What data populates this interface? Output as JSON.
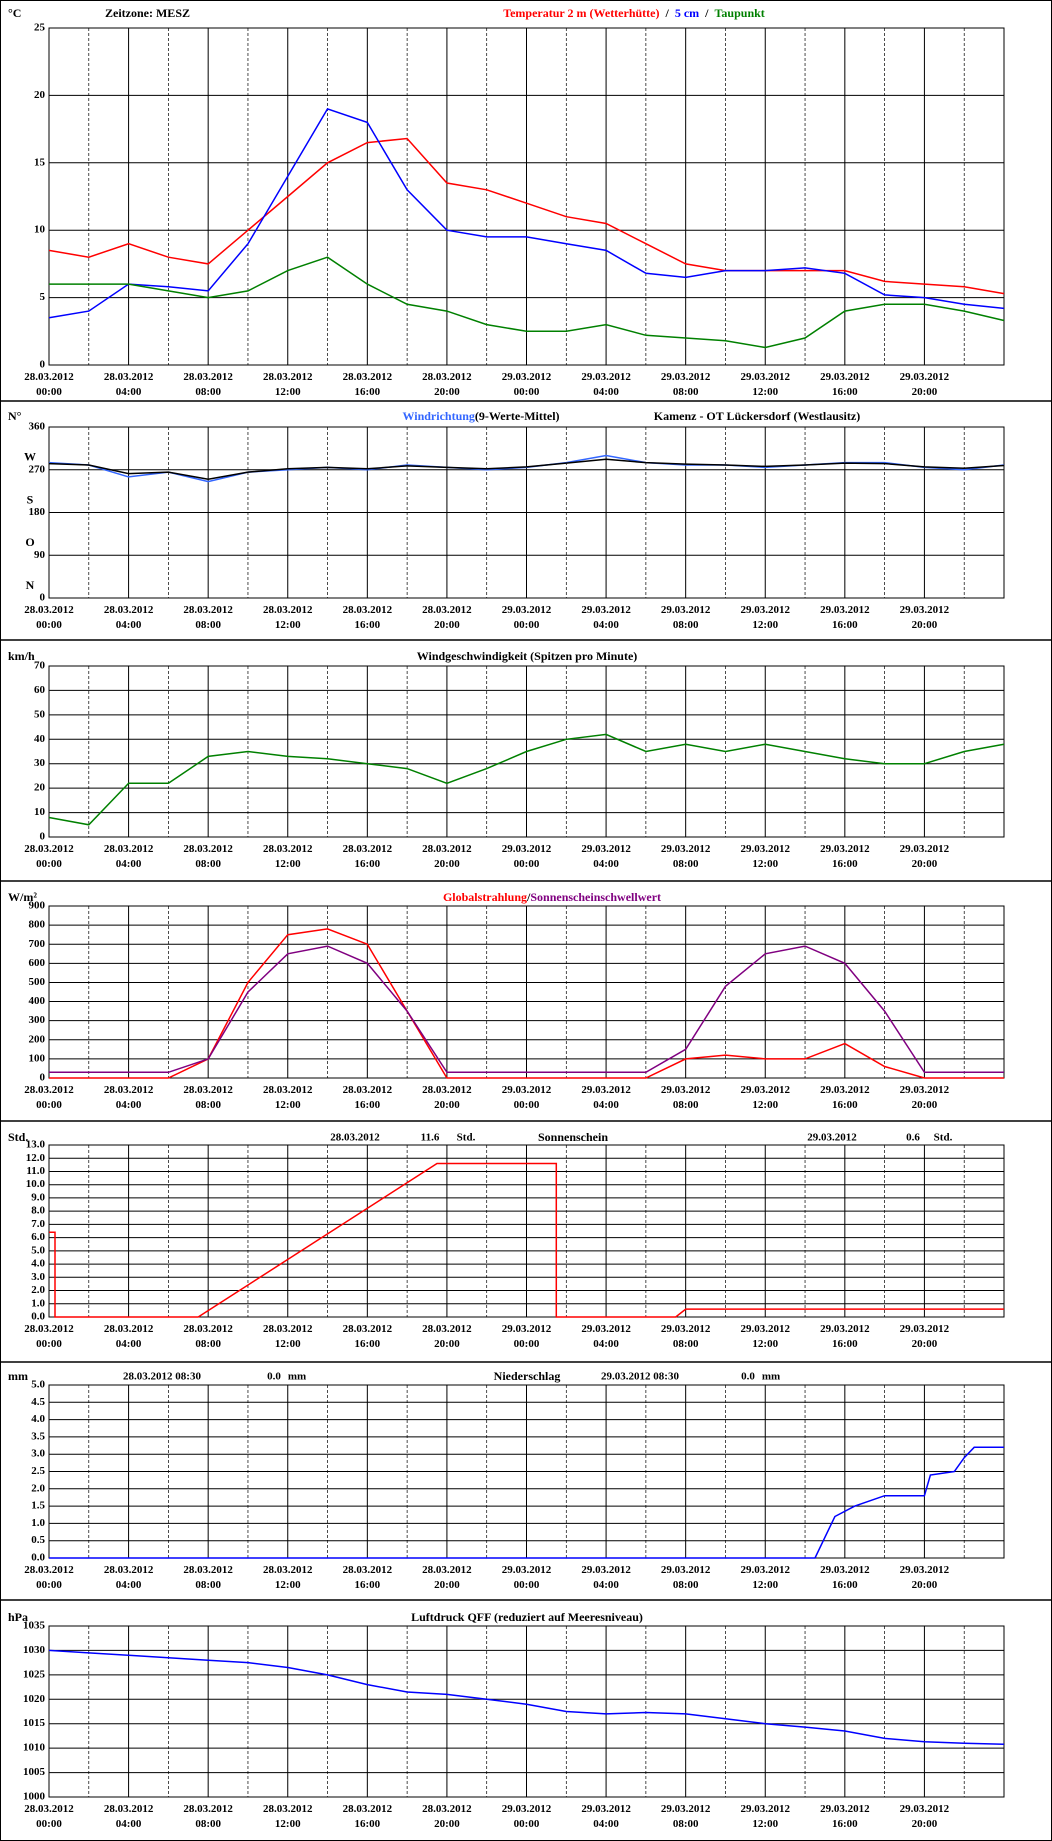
{
  "chart_data": [
    {
      "type": "line",
      "ylabel": "°C",
      "timezone": "Zeitzone: MESZ",
      "separator": "/",
      "xlim": [
        0,
        48
      ],
      "ylim": [
        0,
        25
      ],
      "yticks": [
        0,
        5,
        10,
        15,
        20,
        25
      ],
      "xticks": [
        {
          "value": 0,
          "label": "28.03.2012 00:00"
        },
        {
          "value": 4,
          "label": "28.03.2012 04:00"
        },
        {
          "value": 8,
          "label": "28.03.2012 08:00"
        },
        {
          "value": 12,
          "label": "28.03.2012 12:00"
        },
        {
          "value": 16,
          "label": "28.03.2012 16:00"
        },
        {
          "value": 20,
          "label": "28.03.2012 20:00"
        },
        {
          "value": 24,
          "label": "29.03.2012 00:00"
        },
        {
          "value": 28,
          "label": "29.03.2012 04:00"
        },
        {
          "value": 32,
          "label": "29.03.2012 08:00"
        },
        {
          "value": 36,
          "label": "29.03.2012 12:00"
        },
        {
          "value": 40,
          "label": "29.03.2012 16:00"
        },
        {
          "value": 44,
          "label": "29.03.2012 20:00"
        }
      ],
      "x": [
        0,
        2,
        4,
        6,
        8,
        10,
        12,
        14,
        16,
        18,
        20,
        22,
        24,
        26,
        28,
        30,
        32,
        34,
        36,
        38,
        40,
        42,
        44,
        46,
        48
      ],
      "series": [
        {
          "name": "Temperatur 2 m (Wetterhütte)",
          "color": "#ff0000",
          "values": [
            8.5,
            8,
            9,
            8,
            7.5,
            10,
            12.5,
            15,
            16.5,
            16.8,
            13.5,
            13,
            12,
            11,
            10.5,
            9,
            7.5,
            7,
            7,
            7,
            7,
            6.2,
            6,
            5.8,
            5.3
          ]
        },
        {
          "name": "5 cm",
          "color": "#0000ff",
          "values": [
            3.5,
            4,
            6,
            5.8,
            5.5,
            9,
            14,
            19,
            18,
            13,
            10,
            9.5,
            9.5,
            9,
            8.5,
            6.8,
            6.5,
            7,
            7,
            7.2,
            6.8,
            5.2,
            5,
            4.5,
            4.2
          ]
        },
        {
          "name": "Taupunkt",
          "color": "#008000",
          "values": [
            6,
            6,
            6,
            5.5,
            5,
            5.5,
            7,
            8,
            6,
            4.5,
            4,
            3,
            2.5,
            2.5,
            3,
            2.2,
            2,
            1.8,
            1.3,
            2,
            4,
            4.5,
            4.5,
            4,
            3.3
          ]
        }
      ]
    },
    {
      "type": "line",
      "ylabel": "N°",
      "location": "Kamenz - OT Lückersdorf (Westlausitz)",
      "xlim": [
        0,
        48
      ],
      "ylim": [
        0,
        360
      ],
      "yticks": [
        0,
        90,
        180,
        270,
        360
      ],
      "direction_labels": [
        {
          "value": 0,
          "label": "N"
        },
        {
          "value": 90,
          "label": "O"
        },
        {
          "value": 180,
          "label": "S"
        },
        {
          "value": 270,
          "label": "W"
        }
      ],
      "xticks": [
        {
          "value": 0,
          "label": "28.03.2012 00:00"
        },
        {
          "value": 4,
          "label": "28.03.2012 04:00"
        },
        {
          "value": 8,
          "label": "28.03.2012 08:00"
        },
        {
          "value": 12,
          "label": "28.03.2012 12:00"
        },
        {
          "value": 16,
          "label": "28.03.2012 16:00"
        },
        {
          "value": 20,
          "label": "28.03.2012 20:00"
        },
        {
          "value": 24,
          "label": "29.03.2012 00:00"
        },
        {
          "value": 28,
          "label": "29.03.2012 04:00"
        },
        {
          "value": 32,
          "label": "29.03.2012 08:00"
        },
        {
          "value": 36,
          "label": "29.03.2012 12:00"
        },
        {
          "value": 40,
          "label": "29.03.2012 16:00"
        },
        {
          "value": 44,
          "label": "29.03.2012 20:00"
        }
      ],
      "x": [
        0,
        2,
        4,
        6,
        8,
        10,
        12,
        14,
        16,
        18,
        20,
        22,
        24,
        26,
        28,
        30,
        32,
        34,
        36,
        38,
        40,
        42,
        44,
        46,
        48
      ],
      "series": [
        {
          "name": "Windrichtung",
          "color": "#3366ff",
          "values": [
            285,
            280,
            255,
            265,
            245,
            265,
            270,
            275,
            270,
            280,
            275,
            270,
            275,
            285,
            300,
            285,
            280,
            280,
            275,
            280,
            285,
            285,
            275,
            270,
            280
          ]
        },
        {
          "name": "(9-Werte-Mittel)",
          "color": "#000000",
          "values": [
            283,
            280,
            262,
            265,
            250,
            265,
            272,
            275,
            272,
            278,
            275,
            272,
            276,
            284,
            292,
            285,
            282,
            280,
            277,
            280,
            284,
            283,
            276,
            273,
            279
          ]
        }
      ]
    },
    {
      "type": "line",
      "ylabel": "km/h",
      "title": "Windgeschwindigkeit (Spitzen pro Minute)",
      "xlim": [
        0,
        48
      ],
      "ylim": [
        0,
        70
      ],
      "yticks": [
        0,
        10,
        20,
        30,
        40,
        50,
        60,
        70
      ],
      "xticks": [
        {
          "value": 0,
          "label": "28.03.2012 00:00"
        },
        {
          "value": 4,
          "label": "28.03.2012 04:00"
        },
        {
          "value": 8,
          "label": "28.03.2012 08:00"
        },
        {
          "value": 12,
          "label": "28.03.2012 12:00"
        },
        {
          "value": 16,
          "label": "28.03.2012 16:00"
        },
        {
          "value": 20,
          "label": "28.03.2012 20:00"
        },
        {
          "value": 24,
          "label": "29.03.2012 00:00"
        },
        {
          "value": 28,
          "label": "29.03.2012 04:00"
        },
        {
          "value": 32,
          "label": "29.03.2012 08:00"
        },
        {
          "value": 36,
          "label": "29.03.2012 12:00"
        },
        {
          "value": 40,
          "label": "29.03.2012 16:00"
        },
        {
          "value": 44,
          "label": "29.03.2012 20:00"
        }
      ],
      "x": [
        0,
        2,
        4,
        6,
        8,
        10,
        12,
        14,
        16,
        18,
        20,
        22,
        24,
        26,
        28,
        30,
        32,
        34,
        36,
        38,
        40,
        42,
        44,
        46,
        48
      ],
      "series": [
        {
          "color": "#008000",
          "values": [
            8,
            5,
            22,
            22,
            33,
            35,
            33,
            32,
            30,
            28,
            22,
            28,
            35,
            40,
            42,
            35,
            38,
            35,
            38,
            35,
            32,
            30,
            30,
            35,
            38
          ]
        }
      ]
    },
    {
      "type": "line",
      "ylabel": "W/m²",
      "separator": "/",
      "xlim": [
        0,
        48
      ],
      "ylim": [
        0,
        900
      ],
      "yticks": [
        0,
        100,
        200,
        300,
        400,
        500,
        600,
        700,
        800,
        900
      ],
      "xticks": [
        {
          "value": 0,
          "label": "28.03.2012 00:00"
        },
        {
          "value": 4,
          "label": "28.03.2012 04:00"
        },
        {
          "value": 8,
          "label": "28.03.2012 08:00"
        },
        {
          "value": 12,
          "label": "28.03.2012 12:00"
        },
        {
          "value": 16,
          "label": "28.03.2012 16:00"
        },
        {
          "value": 20,
          "label": "28.03.2012 20:00"
        },
        {
          "value": 24,
          "label": "29.03.2012 00:00"
        },
        {
          "value": 28,
          "label": "29.03.2012 04:00"
        },
        {
          "value": 32,
          "label": "29.03.2012 08:00"
        },
        {
          "value": 36,
          "label": "29.03.2012 12:00"
        },
        {
          "value": 40,
          "label": "29.03.2012 16:00"
        },
        {
          "value": 44,
          "label": "29.03.2012 20:00"
        }
      ],
      "x": [
        0,
        2,
        4,
        6,
        8,
        10,
        12,
        14,
        16,
        18,
        20,
        22,
        24,
        26,
        28,
        30,
        32,
        34,
        36,
        38,
        40,
        42,
        44,
        46,
        48
      ],
      "series": [
        {
          "name": "Globalstrahlung",
          "color": "#ff0000",
          "values": [
            0,
            0,
            0,
            0,
            100,
            500,
            750,
            780,
            700,
            350,
            0,
            0,
            0,
            0,
            0,
            0,
            100,
            120,
            100,
            100,
            180,
            60,
            0,
            0,
            0
          ]
        },
        {
          "name": "Sonnenscheinschwellwert",
          "color": "#800080",
          "values": [
            30,
            30,
            30,
            30,
            100,
            450,
            650,
            690,
            600,
            350,
            30,
            30,
            30,
            30,
            30,
            30,
            150,
            480,
            650,
            690,
            600,
            350,
            30,
            30,
            30
          ]
        }
      ]
    },
    {
      "type": "line",
      "ylabel": "Std.",
      "title": "Sonnenschein",
      "annotations": [
        "28.03.2012",
        "11.6",
        "Std.",
        "29.03.2012",
        "0.6",
        "Std."
      ],
      "xlim": [
        0,
        48
      ],
      "ylim": [
        0,
        13
      ],
      "yticks": [
        {
          "value": 0,
          "label": "0.0"
        },
        {
          "value": 1,
          "label": "1.0"
        },
        {
          "value": 2,
          "label": "2.0"
        },
        {
          "value": 3,
          "label": "3.0"
        },
        {
          "value": 4,
          "label": "4.0"
        },
        {
          "value": 5,
          "label": "5.0"
        },
        {
          "value": 6,
          "label": "6.0"
        },
        {
          "value": 7,
          "label": "7.0"
        },
        {
          "value": 8,
          "label": "8.0"
        },
        {
          "value": 9,
          "label": "9.0"
        },
        {
          "value": 10,
          "label": "10.0"
        },
        {
          "value": 11,
          "label": "11.0"
        },
        {
          "value": 12,
          "label": "12.0"
        },
        {
          "value": 13,
          "label": "13.0"
        }
      ],
      "xticks": [
        {
          "value": 0,
          "label": "28.03.2012 00:00"
        },
        {
          "value": 4,
          "label": "28.03.2012 04:00"
        },
        {
          "value": 8,
          "label": "28.03.2012 08:00"
        },
        {
          "value": 12,
          "label": "28.03.2012 12:00"
        },
        {
          "value": 16,
          "label": "28.03.2012 16:00"
        },
        {
          "value": 20,
          "label": "28.03.2012 20:00"
        },
        {
          "value": 24,
          "label": "29.03.2012 00:00"
        },
        {
          "value": 28,
          "label": "29.03.2012 04:00"
        },
        {
          "value": 32,
          "label": "29.03.2012 08:00"
        },
        {
          "value": 36,
          "label": "29.03.2012 12:00"
        },
        {
          "value": 40,
          "label": "29.03.2012 16:00"
        },
        {
          "value": 44,
          "label": "29.03.2012 20:00"
        }
      ],
      "series": [
        {
          "color": "#ff0000",
          "x": [
            0,
            0.3,
            0.3,
            7.5,
            19.5,
            25.5,
            25.5,
            31.5,
            32,
            48
          ],
          "values": [
            6.4,
            6.4,
            0,
            0,
            11.6,
            11.6,
            0,
            0,
            0.6,
            0.6
          ]
        }
      ]
    },
    {
      "type": "line",
      "ylabel": "mm",
      "title": "Niederschlag",
      "annotations": [
        "28.03.2012 08:30",
        "0.0",
        "mm",
        "29.03.2012 08:30",
        "0.0",
        "mm"
      ],
      "xlim": [
        0,
        48
      ],
      "ylim": [
        0,
        5
      ],
      "yticks": [
        {
          "value": 0,
          "label": "0.0"
        },
        {
          "value": 0.5,
          "label": "0.5"
        },
        {
          "value": 1,
          "label": "1.0"
        },
        {
          "value": 1.5,
          "label": "1.5"
        },
        {
          "value": 2,
          "label": "2.0"
        },
        {
          "value": 2.5,
          "label": "2.5"
        },
        {
          "value": 3,
          "label": "3.0"
        },
        {
          "value": 3.5,
          "label": "3.5"
        },
        {
          "value": 4,
          "label": "4.0"
        },
        {
          "value": 4.5,
          "label": "4.5"
        },
        {
          "value": 5,
          "label": "5.0"
        }
      ],
      "xticks": [
        {
          "value": 0,
          "label": "28.03.2012 00:00"
        },
        {
          "value": 4,
          "label": "28.03.2012 04:00"
        },
        {
          "value": 8,
          "label": "28.03.2012 08:00"
        },
        {
          "value": 12,
          "label": "28.03.2012 12:00"
        },
        {
          "value": 16,
          "label": "28.03.2012 16:00"
        },
        {
          "value": 20,
          "label": "28.03.2012 20:00"
        },
        {
          "value": 24,
          "label": "29.03.2012 00:00"
        },
        {
          "value": 28,
          "label": "29.03.2012 04:00"
        },
        {
          "value": 32,
          "label": "29.03.2012 08:00"
        },
        {
          "value": 36,
          "label": "29.03.2012 12:00"
        },
        {
          "value": 40,
          "label": "29.03.2012 16:00"
        },
        {
          "value": 44,
          "label": "29.03.2012 20:00"
        }
      ],
      "series": [
        {
          "color": "#0000ff",
          "x": [
            0,
            38.5,
            39.5,
            40.5,
            42,
            44,
            44.3,
            45.5,
            46,
            46.5,
            48
          ],
          "values": [
            0,
            0,
            1.2,
            1.5,
            1.8,
            1.8,
            2.4,
            2.5,
            2.9,
            3.2,
            3.2
          ]
        }
      ]
    },
    {
      "type": "line",
      "ylabel": "hPa",
      "title": "Luftdruck QFF (reduziert auf Meeresniveau)",
      "xlim": [
        0,
        48
      ],
      "ylim": [
        1000,
        1035
      ],
      "yticks": [
        1000,
        1005,
        1010,
        1015,
        1020,
        1025,
        1030,
        1035
      ],
      "xticks": [
        {
          "value": 0,
          "label": "28.03.2012 00:00"
        },
        {
          "value": 4,
          "label": "28.03.2012 04:00"
        },
        {
          "value": 8,
          "label": "28.03.2012 08:00"
        },
        {
          "value": 12,
          "label": "28.03.2012 12:00"
        },
        {
          "value": 16,
          "label": "28.03.2012 16:00"
        },
        {
          "value": 20,
          "label": "28.03.2012 20:00"
        },
        {
          "value": 24,
          "label": "29.03.2012 00:00"
        },
        {
          "value": 28,
          "label": "29.03.2012 04:00"
        },
        {
          "value": 32,
          "label": "29.03.2012 08:00"
        },
        {
          "value": 36,
          "label": "29.03.2012 12:00"
        },
        {
          "value": 40,
          "label": "29.03.2012 16:00"
        },
        {
          "value": 44,
          "label": "29.03.2012 20:00"
        }
      ],
      "x": [
        0,
        2,
        4,
        6,
        8,
        10,
        12,
        14,
        16,
        18,
        20,
        22,
        24,
        26,
        28,
        30,
        32,
        34,
        36,
        38,
        40,
        42,
        44,
        46,
        48
      ],
      "series": [
        {
          "color": "#0000ff",
          "values": [
            1030,
            1029.5,
            1029,
            1028.5,
            1028,
            1027.5,
            1026.5,
            1025,
            1023,
            1021.5,
            1021,
            1020,
            1019,
            1017.5,
            1017,
            1017.3,
            1017,
            1016,
            1015,
            1014.3,
            1013.5,
            1012,
            1011.3,
            1011,
            1010.8
          ]
        }
      ]
    }
  ]
}
